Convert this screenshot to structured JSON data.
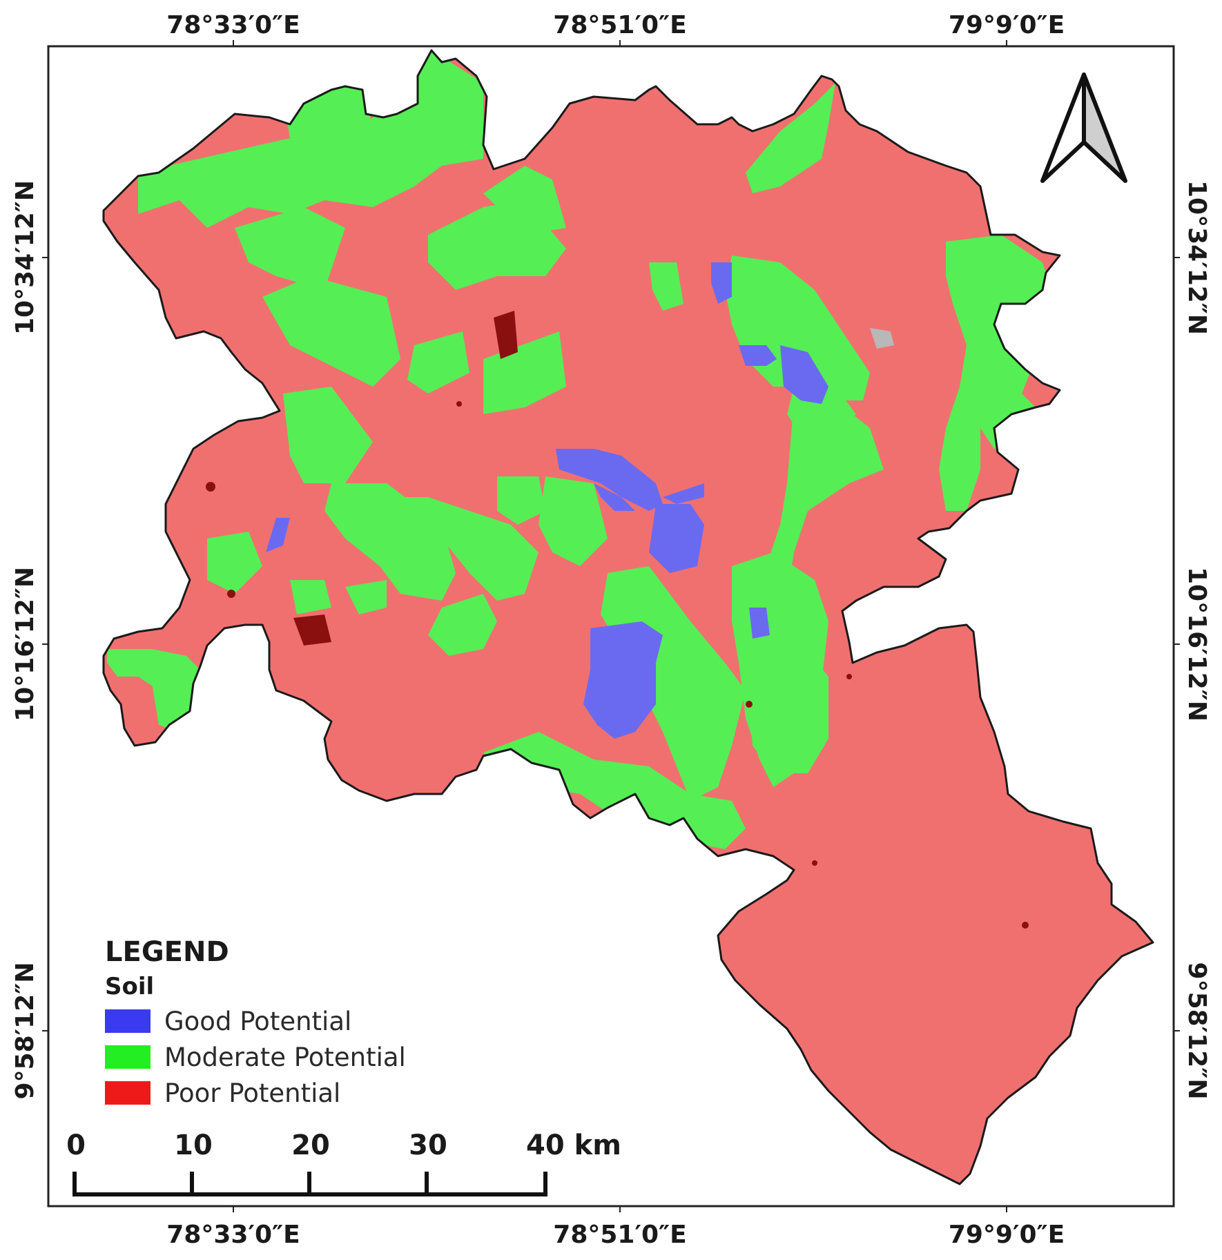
{
  "graticule": {
    "top_longitudes": [
      "78°33′0″E",
      "78°51′0″E",
      "79°9′0″E"
    ],
    "bottom_longitudes": [
      "78°33′0″E",
      "78°51′0″E",
      "79°9′0″E"
    ],
    "left_latitudes": [
      "10°34′12″N",
      "10°16′12″N",
      "9°58′12″N"
    ],
    "right_latitudes": [
      "10°34′12″N",
      "10°16′12″N",
      "9°58′12″N"
    ]
  },
  "legend": {
    "title": "LEGEND",
    "subtitle": "Soil",
    "items": [
      {
        "label": "Good Potential",
        "color": "#3a3af0"
      },
      {
        "label": "Moderate Potential",
        "color": "#22ee22"
      },
      {
        "label": "Poor Potential",
        "color": "#ee1a1a"
      }
    ]
  },
  "scale_bar": {
    "ticks": [
      "0",
      "10",
      "20",
      "30"
    ],
    "end_label": "40 km"
  },
  "north_arrow": {
    "icon": "north-arrow-icon"
  },
  "map_colors": {
    "poor": "#f07070",
    "moderate": "#55ee55",
    "good": "#6a6af0",
    "nodata": "#b8b8b8"
  }
}
